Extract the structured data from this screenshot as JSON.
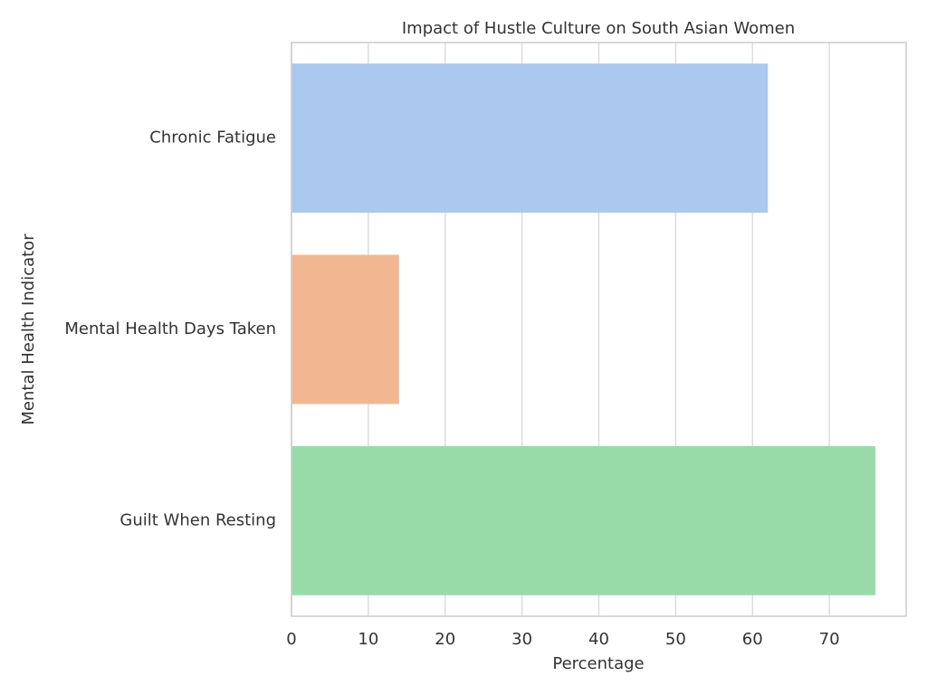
{
  "chart_data": {
    "type": "barh",
    "title": "Impact of Hustle Culture on South Asian Women",
    "xlabel": "Percentage",
    "ylabel": "Mental Health Indicator",
    "categories": [
      "Chronic Fatigue",
      "Mental Health Days Taken",
      "Guilt When Resting"
    ],
    "values": [
      62,
      14,
      76
    ],
    "colors": [
      "#abc9ee",
      "#f0b791",
      "#98dba8"
    ],
    "xlim": [
      0,
      80
    ],
    "xticks": [
      0,
      10,
      20,
      30,
      40,
      50,
      60,
      70
    ],
    "grid": true
  }
}
